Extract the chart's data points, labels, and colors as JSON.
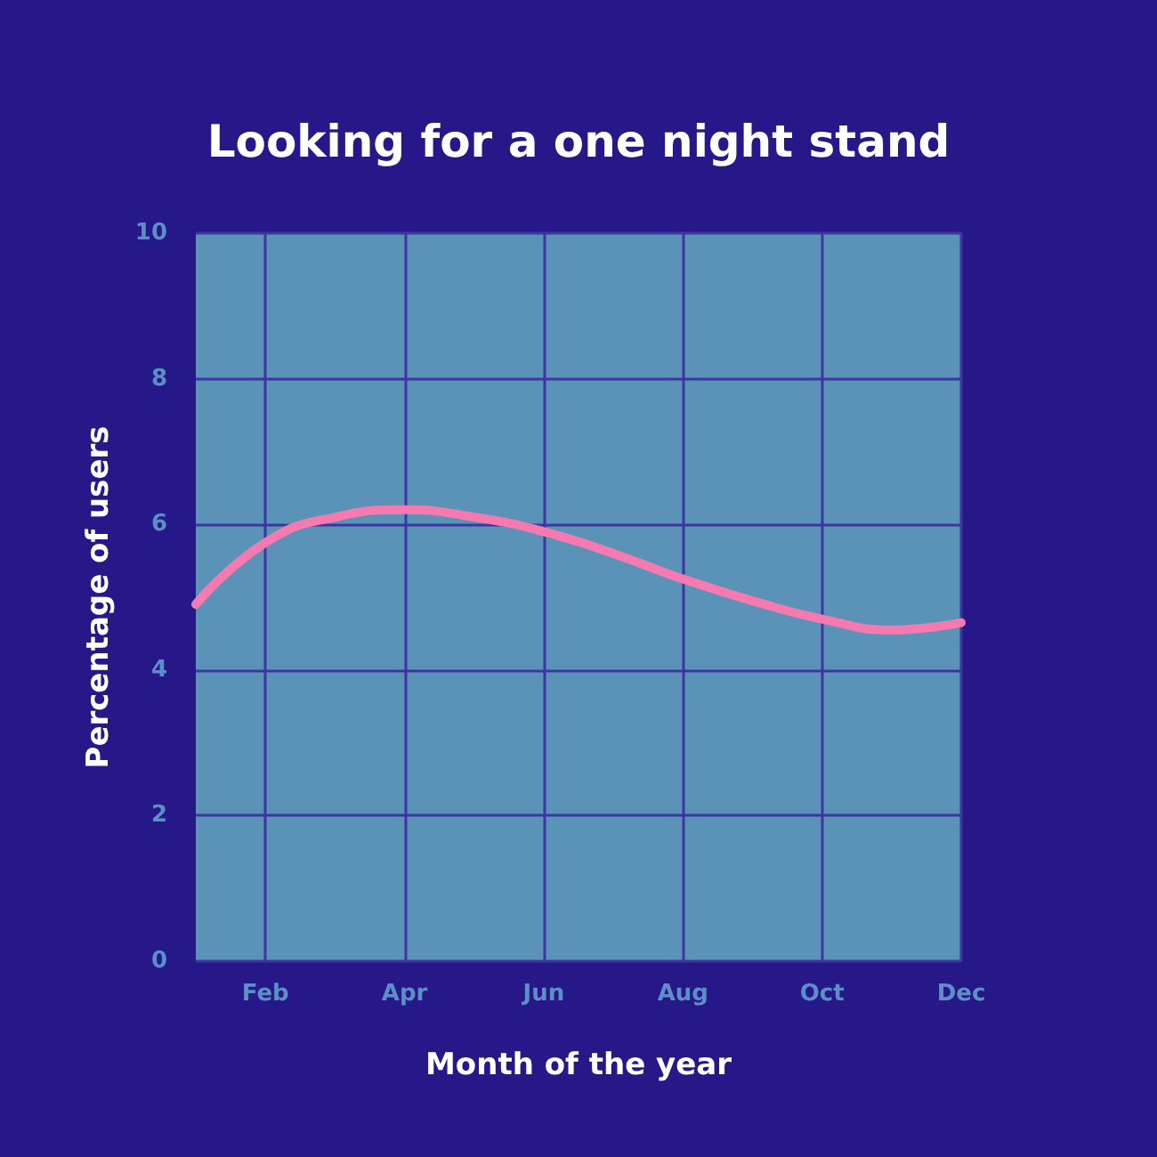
{
  "chart_data": {
    "type": "line",
    "title": "Looking for a one night stand",
    "xlabel": "Month of the year",
    "ylabel": "Percentage of users",
    "categories": [
      null,
      "Feb",
      null,
      "Apr",
      null,
      "Jun",
      null,
      "Aug",
      null,
      "Oct",
      null,
      "Dec"
    ],
    "series": [
      {
        "color": "#f47ab0",
        "values": [
          4.9,
          5.75,
          6.1,
          6.2,
          6.1,
          5.9,
          5.6,
          5.25,
          4.95,
          4.7,
          4.55,
          4.65
        ]
      }
    ],
    "ylim": [
      0,
      10
    ],
    "yticks": [
      0,
      2,
      4,
      6,
      8,
      10
    ],
    "grid": true,
    "marker": "none",
    "line_style": "solid"
  }
}
